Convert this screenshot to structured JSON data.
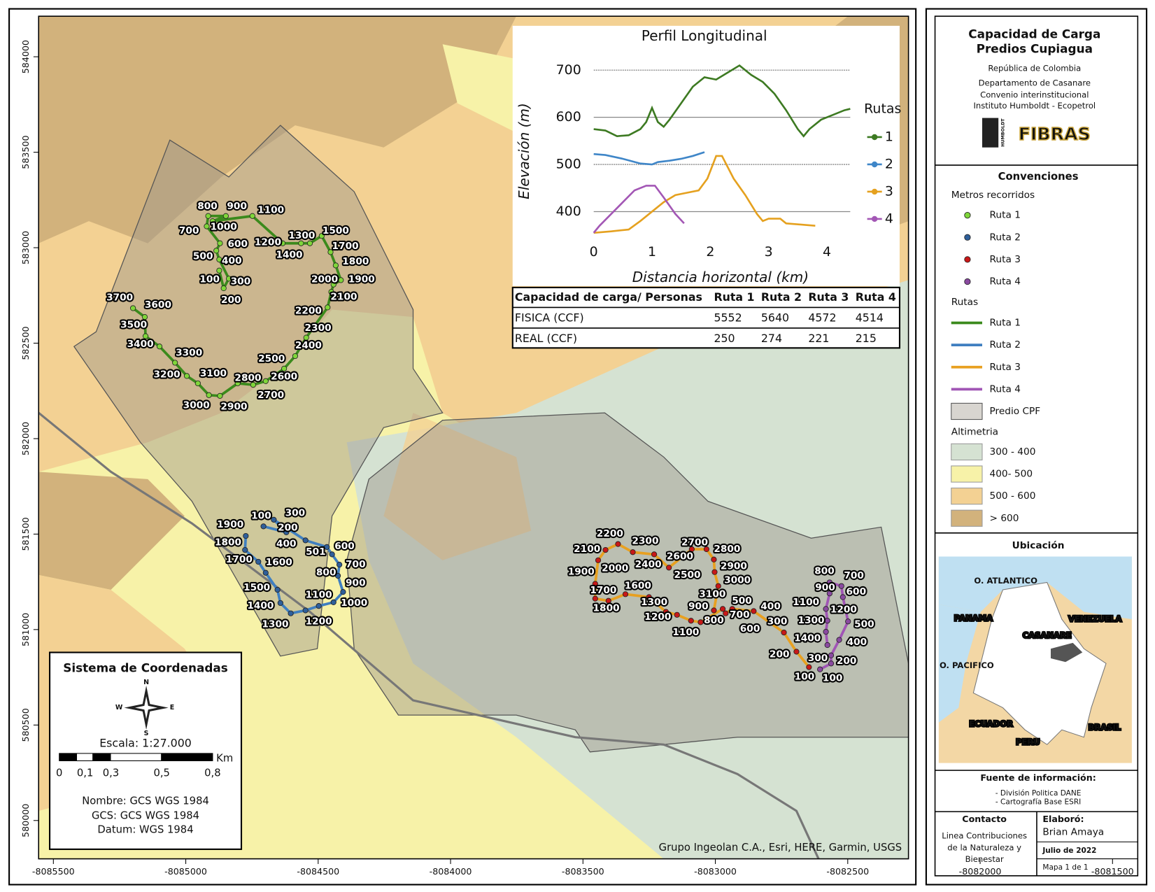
{
  "map": {
    "xticks": [
      -8085500,
      -8085000,
      -8084500,
      -8084000,
      -8083500,
      -8083000,
      -8082500,
      -8082000,
      -8081500
    ],
    "yticks": [
      580000,
      580500,
      581000,
      581500,
      582000,
      582500,
      583000,
      583500,
      584000
    ],
    "attribution": "Grupo Ingeolan C.A., Esri, HERE, Garmin, USGS",
    "routes": [
      {
        "name": "Ruta 1",
        "line_color": "#3b8a1c",
        "marker_color": "#7fd63a",
        "markers": [
          100,
          200,
          300,
          400,
          500,
          600,
          700,
          800,
          900,
          1000,
          1100,
          1200,
          1300,
          1400,
          1500,
          1700,
          1800,
          1900,
          2000,
          2100,
          2200,
          2300,
          2400,
          2500,
          2600,
          2700,
          2800,
          2900,
          3000,
          3100,
          3200,
          3300,
          3400,
          3500,
          3600,
          3700
        ]
      },
      {
        "name": "Ruta 2",
        "line_color": "#3f7fc0",
        "marker_color": "#2f5f9a",
        "markers": [
          100,
          200,
          300,
          400,
          501,
          600,
          700,
          800,
          900,
          1000,
          1100,
          1200,
          1300,
          1400,
          1500,
          1600,
          1700,
          1800,
          1900
        ]
      },
      {
        "name": "Ruta 3",
        "line_color": "#e8a020",
        "marker_color": "#c81818",
        "markers": [
          100,
          200,
          300,
          400,
          500,
          600,
          700,
          800,
          900,
          1100,
          1200,
          1300,
          1600,
          1700,
          1800,
          1900,
          2000,
          2100,
          2200,
          2300,
          2400,
          2500,
          2600,
          2700,
          2800,
          2900,
          3000,
          3100
        ]
      },
      {
        "name": "Ruta 4",
        "line_color": "#a055b5",
        "marker_color": "#8a4aa0",
        "markers": [
          100,
          200,
          300,
          400,
          500,
          600,
          700,
          800,
          900,
          1100,
          1200,
          1300,
          1400
        ]
      }
    ]
  },
  "profile": {
    "type": "line",
    "title": "Perfil Longitudinal",
    "xlabel": "Distancia horizontal (km)",
    "ylabel": "Elevación (m)",
    "legend_title": "Rutas",
    "xlim": [
      0,
      4.4
    ],
    "ylim": [
      350,
      730
    ],
    "xticks": [
      0,
      1,
      2,
      3,
      4
    ],
    "yticks": [
      400,
      500,
      600,
      700
    ],
    "grid": true,
    "series": [
      {
        "name": "1",
        "color": "#3d7a22",
        "x": [
          0,
          0.2,
          0.4,
          0.6,
          0.8,
          0.9,
          1.0,
          1.1,
          1.2,
          1.3,
          1.5,
          1.7,
          1.9,
          2.1,
          2.3,
          2.5,
          2.7,
          2.9,
          3.1,
          3.3,
          3.5,
          3.6,
          3.7,
          3.9,
          4.1,
          4.3,
          4.4
        ],
        "values": [
          575,
          572,
          560,
          562,
          575,
          590,
          620,
          590,
          580,
          595,
          630,
          665,
          685,
          680,
          695,
          710,
          690,
          675,
          650,
          615,
          575,
          560,
          575,
          595,
          605,
          615,
          618
        ]
      },
      {
        "name": "2",
        "color": "#3f86c8",
        "x": [
          0,
          0.2,
          0.5,
          0.8,
          1.0,
          1.1,
          1.3,
          1.5,
          1.7,
          1.9
        ],
        "values": [
          522,
          520,
          512,
          502,
          500,
          505,
          508,
          512,
          518,
          526
        ]
      },
      {
        "name": "3",
        "color": "#e5a11f",
        "x": [
          0,
          0.3,
          0.6,
          0.8,
          1.0,
          1.2,
          1.4,
          1.6,
          1.8,
          1.95,
          2.1,
          2.2,
          2.4,
          2.6,
          2.8,
          2.9,
          3.0,
          3.2,
          3.3,
          3.6,
          3.8
        ],
        "values": [
          355,
          358,
          362,
          380,
          400,
          420,
          435,
          440,
          445,
          470,
          518,
          518,
          470,
          435,
          395,
          380,
          385,
          385,
          375,
          372,
          370
        ]
      },
      {
        "name": "4",
        "color": "#a357b5",
        "x": [
          0,
          0.1,
          0.3,
          0.5,
          0.7,
          0.9,
          1.05,
          1.2,
          1.4,
          1.55
        ],
        "values": [
          355,
          370,
          395,
          420,
          445,
          455,
          455,
          430,
          395,
          375
        ]
      }
    ]
  },
  "table": {
    "header": [
      "Capacidad de carga/ Personas",
      "Ruta 1",
      "Ruta 2",
      "Ruta 3",
      "Ruta 4"
    ],
    "rows": [
      [
        "FISICA (CCF)",
        5552,
        5640,
        4572,
        4514
      ],
      [
        "REAL (CCF)",
        250,
        274,
        221,
        215
      ]
    ]
  },
  "coordinate_box": {
    "title": "Sistema de Coordenadas",
    "compass": [
      "N",
      "E",
      "S",
      "W"
    ],
    "scale": "Escala: 1:27.000",
    "unit": "Km",
    "scale_labels": [
      "0",
      "0,1",
      "0,3",
      "0,5",
      "0,8"
    ],
    "lines": [
      "Nombre: GCS WGS 1984",
      "GCS: GCS WGS 1984",
      "Datum: WGS 1984"
    ]
  },
  "panel": {
    "title": [
      "Capacidad de Carga",
      "Predios Cupiagua"
    ],
    "subtitle": [
      "República de Colombia",
      "Departamento de Casanare",
      "Convenio interinstitucional",
      "Instituto Humboldt - Ecopetrol"
    ],
    "logos": [
      "HUMBOLDT",
      "FIBRAS"
    ],
    "legend": {
      "title": "Convenciones",
      "markers_title": "Metros recorridos",
      "routes_title": "Rutas",
      "property": "Predio CPF",
      "altimetry_title": "Altimetria",
      "altimetry": [
        {
          "label": "300 - 400",
          "color": "#d5e2d2"
        },
        {
          "label": "400- 500",
          "color": "#f7f2a8"
        },
        {
          "label": "500 - 600",
          "color": "#f3d193"
        },
        {
          "label": "> 600",
          "color": "#d2b27c"
        }
      ]
    },
    "location": {
      "title": "Ubicación",
      "labels": [
        "O. ATLANTICO",
        "PANAMA",
        "VENEZUELA",
        "CASANARE",
        "O. PACIFICO",
        "ECUADOR",
        "PERU",
        "BRASIL"
      ]
    },
    "source": {
      "title": "Fuente de información:",
      "lines": [
        "- División Politica DANE",
        "- Cartografía Base ESRI"
      ]
    },
    "contact": {
      "title": "Contacto",
      "lines": [
        "Linea Contribuciones",
        "de la Naturaleza y",
        "Bienestar"
      ]
    },
    "author": {
      "title": "Elaboró:",
      "name": "Brian Amaya",
      "date": "Julio de 2022",
      "sheet": "Mapa 1 de 1"
    }
  }
}
